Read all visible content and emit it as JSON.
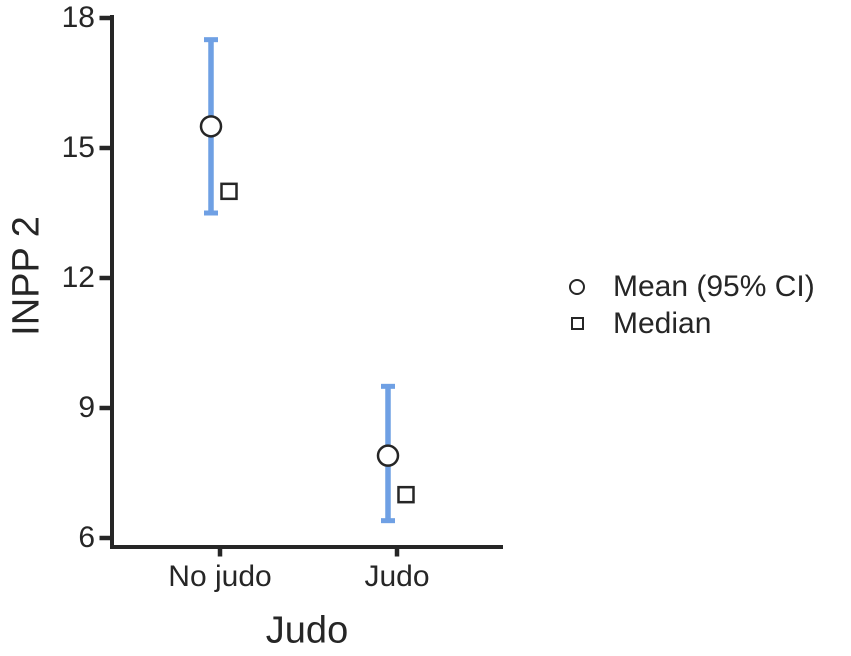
{
  "chart_data": {
    "type": "scatter",
    "title": "",
    "xlabel": "Judo",
    "ylabel": "INPP 2",
    "categories": [
      "No judo",
      "Judo"
    ],
    "y_ticks": [
      6,
      9,
      12,
      15,
      18
    ],
    "ylim": [
      6,
      18
    ],
    "grid": false,
    "legend_position": "right",
    "series": [
      {
        "name": "Mean (95% CI)",
        "marker": "circle",
        "values": [
          15.5,
          7.9
        ],
        "ci_low": [
          13.5,
          6.4
        ],
        "ci_high": [
          17.5,
          9.5
        ]
      },
      {
        "name": "Median",
        "marker": "square",
        "values": [
          14.0,
          7.0
        ]
      }
    ],
    "colors": {
      "ci_bar": "#6FA0E4",
      "axis": "#262626",
      "text": "#262626",
      "marker_fill": "#ffffff",
      "background": "#ffffff"
    }
  }
}
